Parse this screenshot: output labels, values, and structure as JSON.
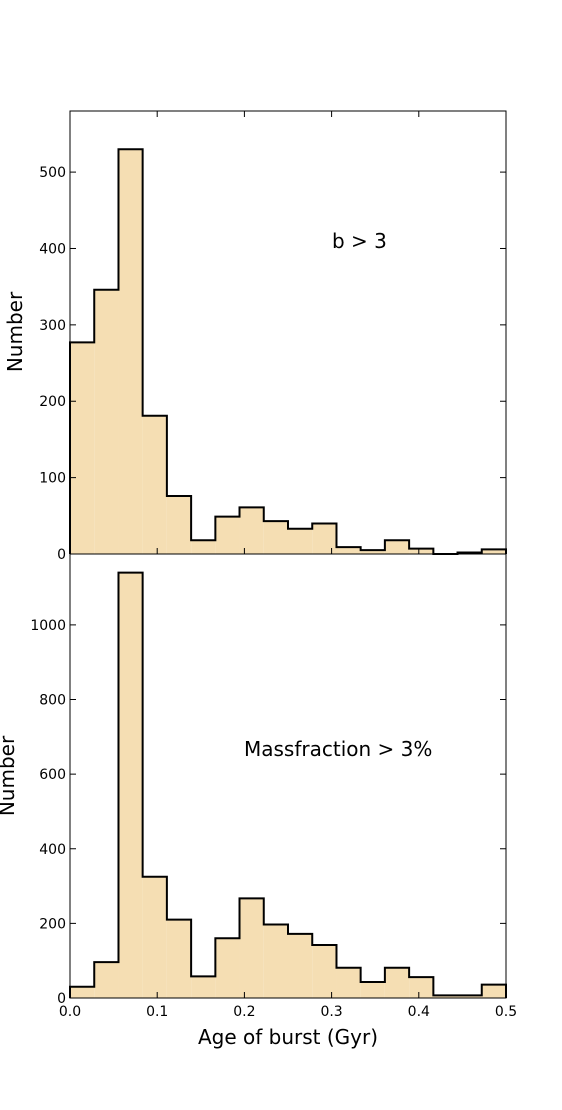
{
  "chart_data": [
    {
      "type": "bar",
      "subtype": "histogram",
      "annotation": "b > 3",
      "xlabel": "",
      "ylabel": "Number",
      "xlim": [
        0.0,
        0.5
      ],
      "ylim": [
        0,
        580
      ],
      "yticks": [
        0,
        100,
        200,
        300,
        400,
        500
      ],
      "bin_edges": [
        0.0,
        0.0278,
        0.0556,
        0.0833,
        0.1111,
        0.1389,
        0.1667,
        0.1944,
        0.2222,
        0.25,
        0.2778,
        0.3056,
        0.3333,
        0.3611,
        0.3889,
        0.4167,
        0.4444,
        0.4722,
        0.5
      ],
      "values": [
        277,
        346,
        530,
        181,
        76,
        18,
        49,
        61,
        43,
        33,
        40,
        9,
        5,
        18,
        7,
        0,
        2,
        6
      ],
      "fill_color": "#f5deb3",
      "edge_color": "#000000"
    },
    {
      "type": "bar",
      "subtype": "histogram",
      "annotation": "Massfraction > 3%",
      "xlabel": "Age of burst (Gyr)",
      "ylabel": "Number",
      "xlim": [
        0.0,
        0.5
      ],
      "ylim": [
        0,
        1190
      ],
      "xticks": [
        "0.0",
        "0.1",
        "0.2",
        "0.3",
        "0.4",
        "0.5"
      ],
      "yticks": [
        0,
        200,
        400,
        600,
        800,
        1000
      ],
      "bin_edges": [
        0.0,
        0.0278,
        0.0556,
        0.0833,
        0.1111,
        0.1389,
        0.1667,
        0.1944,
        0.2222,
        0.25,
        0.2778,
        0.3056,
        0.3333,
        0.3611,
        0.3889,
        0.4167,
        0.4444,
        0.4722,
        0.5
      ],
      "values": [
        30,
        96,
        1140,
        325,
        210,
        58,
        160,
        267,
        197,
        172,
        142,
        81,
        43,
        81,
        56,
        7,
        7,
        36
      ],
      "fill_color": "#f5deb3",
      "edge_color": "#000000"
    }
  ]
}
